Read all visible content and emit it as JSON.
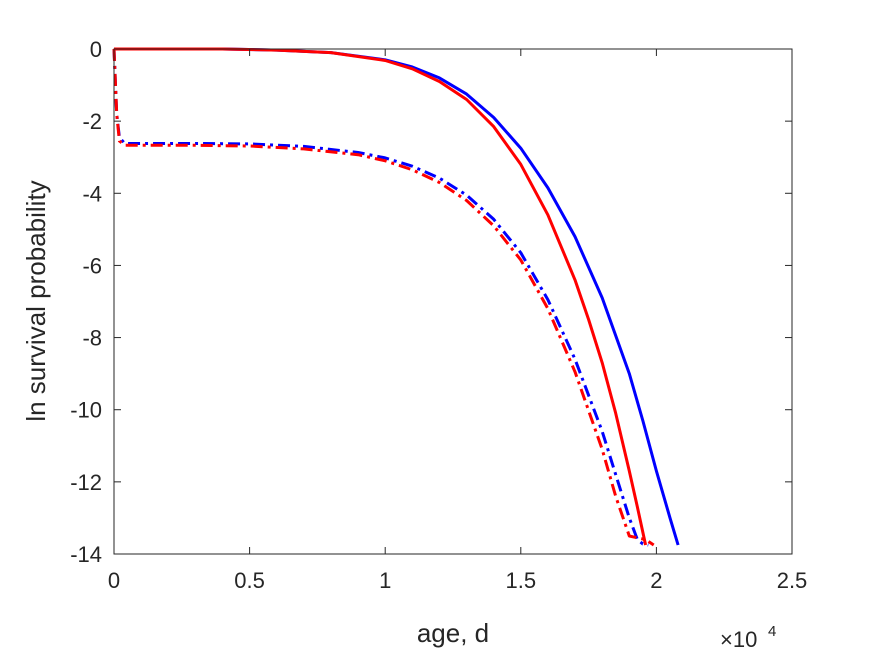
{
  "chart_data": {
    "type": "line",
    "title": "",
    "xlabel": "age, d",
    "ylabel": "ln survival probability",
    "xlim": [
      0,
      25000
    ],
    "ylim": [
      -14,
      0
    ],
    "grid": false,
    "legend": "none",
    "x_exponent_label": {
      "base": "×10",
      "exponent": "4"
    },
    "x_ticks": [
      0,
      5000,
      10000,
      15000,
      20000,
      25000
    ],
    "x_tick_labels": [
      "0",
      "0.5",
      "1",
      "1.5",
      "2",
      "2.5"
    ],
    "y_ticks": [
      0,
      -2,
      -4,
      -6,
      -8,
      -10,
      -12,
      -14
    ],
    "y_tick_labels": [
      "0",
      "-2",
      "-4",
      "-6",
      "-8",
      "-10",
      "-12",
      "-14"
    ],
    "series": [
      {
        "color": "#0000ff",
        "style": "solid",
        "x": [
          0,
          2000,
          4000,
          6000,
          8000,
          10000,
          11000,
          12000,
          13000,
          14000,
          15000,
          16000,
          17000,
          18000,
          19000,
          19500,
          20000,
          20500,
          20800
        ],
        "y": [
          0,
          0,
          0,
          -0.03,
          -0.1,
          -0.3,
          -0.5,
          -0.8,
          -1.25,
          -1.9,
          -2.75,
          -3.85,
          -5.2,
          -6.9,
          -9.0,
          -10.3,
          -11.7,
          -13.0,
          -13.75
        ]
      },
      {
        "color": "#ff0000",
        "style": "solid",
        "x": [
          0,
          2000,
          4000,
          6000,
          8000,
          10000,
          11000,
          12000,
          13000,
          14000,
          15000,
          16000,
          17000,
          17500,
          18000,
          18500,
          19000,
          19300,
          19600
        ],
        "y": [
          0,
          0,
          0,
          -0.03,
          -0.1,
          -0.32,
          -0.55,
          -0.9,
          -1.4,
          -2.15,
          -3.2,
          -4.6,
          -6.4,
          -7.5,
          -8.7,
          -10.1,
          -11.7,
          -12.7,
          -13.75
        ]
      },
      {
        "color": "#0000ff",
        "style": "dashdot",
        "x": [
          0,
          100,
          200,
          400,
          1000,
          3000,
          5000,
          7000,
          9000,
          10000,
          11000,
          12000,
          13000,
          14000,
          15000,
          16000,
          17000,
          18000,
          18500,
          19000,
          19300,
          19500,
          19700
        ],
        "y": [
          0,
          -1.8,
          -2.45,
          -2.62,
          -2.62,
          -2.62,
          -2.63,
          -2.7,
          -2.87,
          -3.02,
          -3.25,
          -3.58,
          -4.05,
          -4.72,
          -5.65,
          -6.95,
          -8.6,
          -10.6,
          -11.8,
          -13.0,
          -13.6,
          -13.72,
          -13.75
        ]
      },
      {
        "color": "#ff0000",
        "style": "dashdot",
        "x": [
          0,
          100,
          200,
          400,
          1000,
          3000,
          5000,
          7000,
          9000,
          10000,
          11000,
          12000,
          13000,
          14000,
          15000,
          16000,
          17000,
          18000,
          18500,
          19000,
          19300,
          19600,
          19900
        ],
        "y": [
          0,
          -1.8,
          -2.55,
          -2.67,
          -2.67,
          -2.67,
          -2.69,
          -2.77,
          -2.93,
          -3.1,
          -3.35,
          -3.7,
          -4.2,
          -4.9,
          -5.85,
          -7.2,
          -8.95,
          -11.1,
          -12.4,
          -13.5,
          -13.55,
          -13.6,
          -13.75
        ]
      }
    ]
  }
}
